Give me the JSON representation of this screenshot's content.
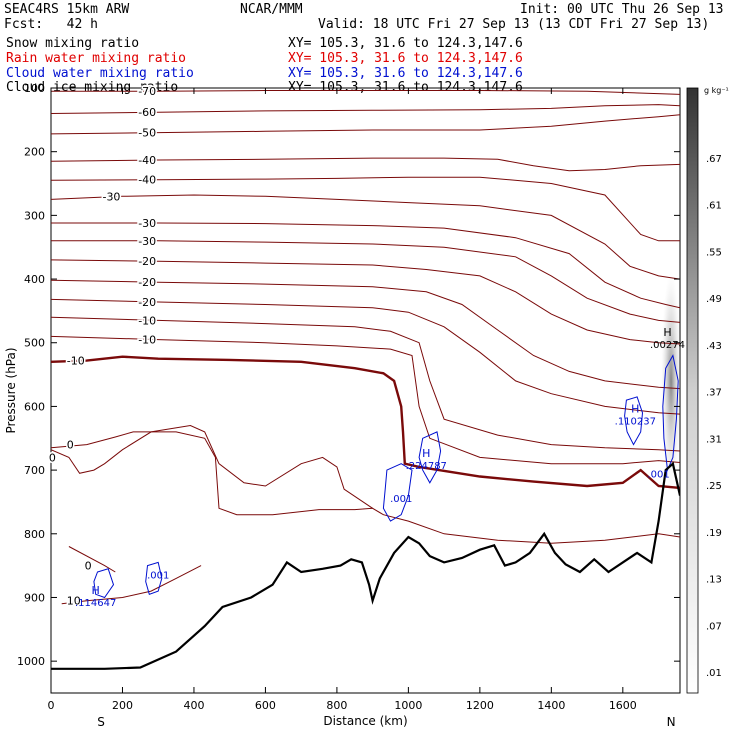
{
  "header": {
    "model": "SEAC4RS 15km ARW",
    "center": "NCAR/MMM",
    "init": "Init: 00 UTC Thu 26 Sep 13",
    "fcst": "Fcst:   42 h",
    "valid": "Valid: 18 UTC Fri 27 Sep 13 (13 CDT Fri 27 Sep 13)"
  },
  "fields": [
    {
      "name": "Snow mixing ratio",
      "xy": "XY= 105.3, 31.6 to 124.3,147.6",
      "color": "#000000"
    },
    {
      "name": "Rain water mixing ratio",
      "xy": "XY= 105.3, 31.6 to 124.3,147.6",
      "color": "#ff0000"
    },
    {
      "name": "Cloud water mixing ratio",
      "xy": "XY= 105.3, 31.6 to 124.3,147.6",
      "color": "#0000cc"
    },
    {
      "name": "Cloud ice mixing ratio",
      "xy": "XY= 105.3, 31.6 to 124.3,147.6",
      "color": "#000000"
    }
  ],
  "chart_data": {
    "type": "cross-section contour",
    "xlabel": "Distance (km)",
    "ylabel": "Pressure (hPa)",
    "xlim": [
      0,
      1760
    ],
    "ylim": [
      1050,
      100
    ],
    "x_ticks": [
      "0",
      "200",
      "400",
      "600",
      "800",
      "1000",
      "1200",
      "1400",
      "1600"
    ],
    "y_ticks": [
      "100",
      "200",
      "300",
      "400",
      "500",
      "600",
      "700",
      "800",
      "900",
      "1000"
    ],
    "end_labels": {
      "left": "S",
      "right": "N"
    },
    "colorbar": {
      "unit": "g kg⁻¹",
      "labels": [
        ".67",
        ".61",
        ".55",
        ".49",
        ".43",
        ".37",
        ".31",
        ".25",
        ".19",
        ".13",
        ".07",
        ".01"
      ]
    },
    "temperature_contour_labels": [
      "-70",
      "-60",
      "-50",
      "-40",
      "-40",
      "-30",
      "-30",
      "-30",
      "-20",
      "-20",
      "-20",
      "-10",
      "-10",
      "-10",
      "0",
      "0",
      "0",
      "10",
      "10",
      "10",
      "10",
      "20"
    ],
    "temperature_contours": [
      {
        "label": "-70",
        "pts": [
          [
            0,
            105
          ],
          [
            300,
            105
          ],
          [
            600,
            104
          ],
          [
            900,
            104
          ],
          [
            1200,
            104
          ],
          [
            1500,
            105
          ],
          [
            1760,
            110
          ]
        ]
      },
      {
        "label": "-60",
        "pts": [
          [
            0,
            140
          ],
          [
            300,
            138
          ],
          [
            600,
            136
          ],
          [
            900,
            135
          ],
          [
            1200,
            134
          ],
          [
            1400,
            132
          ],
          [
            1550,
            128
          ],
          [
            1700,
            126
          ],
          [
            1760,
            128
          ]
        ]
      },
      {
        "label": "-50",
        "pts": [
          [
            0,
            172
          ],
          [
            300,
            170
          ],
          [
            600,
            168
          ],
          [
            900,
            166
          ],
          [
            1200,
            166
          ],
          [
            1400,
            160
          ],
          [
            1550,
            152
          ],
          [
            1700,
            145
          ],
          [
            1760,
            142
          ]
        ]
      },
      {
        "label": "-40",
        "pts": [
          [
            0,
            215
          ],
          [
            300,
            213
          ],
          [
            600,
            212
          ],
          [
            900,
            210
          ],
          [
            1100,
            210
          ],
          [
            1250,
            212
          ],
          [
            1350,
            222
          ],
          [
            1450,
            230
          ],
          [
            1550,
            228
          ],
          [
            1650,
            222
          ],
          [
            1760,
            220
          ]
        ]
      },
      {
        "label": "-40",
        "pts": [
          [
            0,
            245
          ],
          [
            300,
            244
          ],
          [
            600,
            243
          ],
          [
            800,
            242
          ],
          [
            1000,
            240
          ],
          [
            1200,
            240
          ],
          [
            1400,
            250
          ],
          [
            1550,
            268
          ],
          [
            1650,
            330
          ],
          [
            1700,
            340
          ],
          [
            1760,
            340
          ]
        ]
      },
      {
        "label": "-30",
        "pts": [
          [
            0,
            275
          ],
          [
            200,
            270
          ],
          [
            400,
            268
          ],
          [
            600,
            270
          ],
          [
            800,
            275
          ],
          [
            1000,
            280
          ],
          [
            1200,
            285
          ],
          [
            1400,
            300
          ],
          [
            1550,
            345
          ],
          [
            1620,
            380
          ],
          [
            1700,
            395
          ],
          [
            1760,
            400
          ]
        ]
      },
      {
        "label": "-30",
        "pts": [
          [
            0,
            312
          ],
          [
            300,
            312
          ],
          [
            600,
            313
          ],
          [
            900,
            316
          ],
          [
            1100,
            320
          ],
          [
            1300,
            335
          ],
          [
            1450,
            360
          ],
          [
            1550,
            405
          ],
          [
            1650,
            430
          ],
          [
            1720,
            440
          ],
          [
            1760,
            445
          ]
        ]
      },
      {
        "label": "-20",
        "pts": [
          [
            0,
            340
          ],
          [
            300,
            340
          ],
          [
            600,
            342
          ],
          [
            900,
            345
          ],
          [
            1100,
            350
          ],
          [
            1300,
            365
          ],
          [
            1400,
            395
          ],
          [
            1500,
            430
          ],
          [
            1620,
            455
          ],
          [
            1700,
            465
          ],
          [
            1760,
            468
          ]
        ]
      },
      {
        "label": "-20",
        "pts": [
          [
            0,
            370
          ],
          [
            300,
            372
          ],
          [
            600,
            375
          ],
          [
            900,
            378
          ],
          [
            1050,
            385
          ],
          [
            1200,
            395
          ],
          [
            1300,
            420
          ],
          [
            1400,
            455
          ],
          [
            1500,
            480
          ],
          [
            1620,
            495
          ],
          [
            1700,
            500
          ],
          [
            1760,
            502
          ]
        ]
      },
      {
        "label": "-20",
        "pts": [
          [
            0,
            402
          ],
          [
            300,
            405
          ],
          [
            600,
            408
          ],
          [
            900,
            412
          ],
          [
            1050,
            420
          ],
          [
            1150,
            440
          ],
          [
            1250,
            480
          ],
          [
            1350,
            520
          ],
          [
            1450,
            545
          ],
          [
            1550,
            560
          ],
          [
            1700,
            570
          ],
          [
            1760,
            572
          ]
        ]
      },
      {
        "label": "-10",
        "pts": [
          [
            0,
            432
          ],
          [
            300,
            436
          ],
          [
            600,
            440
          ],
          [
            900,
            445
          ],
          [
            1000,
            452
          ],
          [
            1100,
            475
          ],
          [
            1200,
            515
          ],
          [
            1300,
            560
          ],
          [
            1400,
            580
          ],
          [
            1550,
            600
          ],
          [
            1700,
            610
          ],
          [
            1760,
            612
          ]
        ]
      },
      {
        "label": "-10",
        "pts": [
          [
            0,
            460
          ],
          [
            300,
            465
          ],
          [
            600,
            470
          ],
          [
            850,
            475
          ],
          [
            950,
            482
          ],
          [
            1030,
            500
          ],
          [
            1060,
            560
          ],
          [
            1100,
            620
          ],
          [
            1250,
            645
          ],
          [
            1400,
            660
          ],
          [
            1550,
            665
          ],
          [
            1700,
            668
          ],
          [
            1760,
            670
          ]
        ]
      },
      {
        "label": "-10",
        "pts": [
          [
            0,
            490
          ],
          [
            300,
            495
          ],
          [
            600,
            500
          ],
          [
            800,
            505
          ],
          [
            950,
            510
          ],
          [
            1010,
            520
          ],
          [
            1030,
            600
          ],
          [
            1060,
            650
          ],
          [
            1200,
            680
          ],
          [
            1400,
            690
          ],
          [
            1600,
            690
          ],
          [
            1700,
            685
          ],
          [
            1760,
            688
          ]
        ]
      },
      {
        "label": "0",
        "pts": [
          [
            0,
            530
          ],
          [
            100,
            528
          ],
          [
            200,
            522
          ],
          [
            300,
            525
          ],
          [
            500,
            527
          ],
          [
            700,
            530
          ],
          [
            850,
            540
          ],
          [
            930,
            548
          ],
          [
            960,
            560
          ],
          [
            980,
            600
          ],
          [
            985,
            640
          ],
          [
            990,
            690
          ],
          [
            1030,
            695
          ],
          [
            1200,
            710
          ],
          [
            1350,
            718
          ],
          [
            1500,
            725
          ],
          [
            1600,
            720
          ],
          [
            1650,
            700
          ],
          [
            1700,
            725
          ],
          [
            1760,
            728
          ]
        ]
      },
      {
        "label": "10",
        "pts": [
          [
            0,
            665
          ],
          [
            100,
            660
          ],
          [
            180,
            648
          ],
          [
            230,
            640
          ],
          [
            350,
            640
          ],
          [
            430,
            650
          ],
          [
            460,
            680
          ],
          [
            470,
            760
          ],
          [
            520,
            770
          ],
          [
            620,
            770
          ],
          [
            750,
            762
          ],
          [
            850,
            762
          ],
          [
            900,
            760
          ],
          [
            930,
            770
          ],
          [
            1000,
            780
          ],
          [
            1100,
            800
          ],
          [
            1250,
            810
          ],
          [
            1400,
            815
          ],
          [
            1550,
            810
          ],
          [
            1700,
            800
          ],
          [
            1760,
            805
          ]
        ]
      },
      {
        "label": "10",
        "pts": [
          [
            0,
            668
          ],
          [
            50,
            680
          ],
          [
            80,
            705
          ],
          [
            120,
            700
          ],
          [
            150,
            690
          ],
          [
            200,
            668
          ],
          [
            280,
            640
          ],
          [
            390,
            630
          ],
          [
            430,
            640
          ],
          [
            470,
            690
          ],
          [
            540,
            720
          ],
          [
            600,
            725
          ],
          [
            700,
            690
          ],
          [
            760,
            680
          ],
          [
            800,
            695
          ],
          [
            820,
            730
          ],
          [
            900,
            760
          ]
        ]
      },
      {
        "label": "10",
        "pts": [
          [
            50,
            820
          ],
          [
            150,
            850
          ],
          [
            180,
            860
          ]
        ]
      },
      {
        "label": "20",
        "pts": [
          [
            30,
            910
          ],
          [
            100,
            905
          ],
          [
            200,
            900
          ],
          [
            280,
            890
          ],
          [
            350,
            870
          ],
          [
            420,
            850
          ]
        ]
      }
    ],
    "cloud_water_contour_labels": [
      ".001",
      ".001",
      ".001",
      ".001"
    ],
    "highs": [
      {
        "x": 125,
        "p": 910,
        "value": ".114647"
      },
      {
        "x": 1050,
        "p": 695,
        "value": ".224787"
      },
      {
        "x": 1635,
        "p": 625,
        "value": ".110237"
      },
      {
        "x": 1725,
        "p": 505,
        "value": ".00274"
      }
    ]
  }
}
